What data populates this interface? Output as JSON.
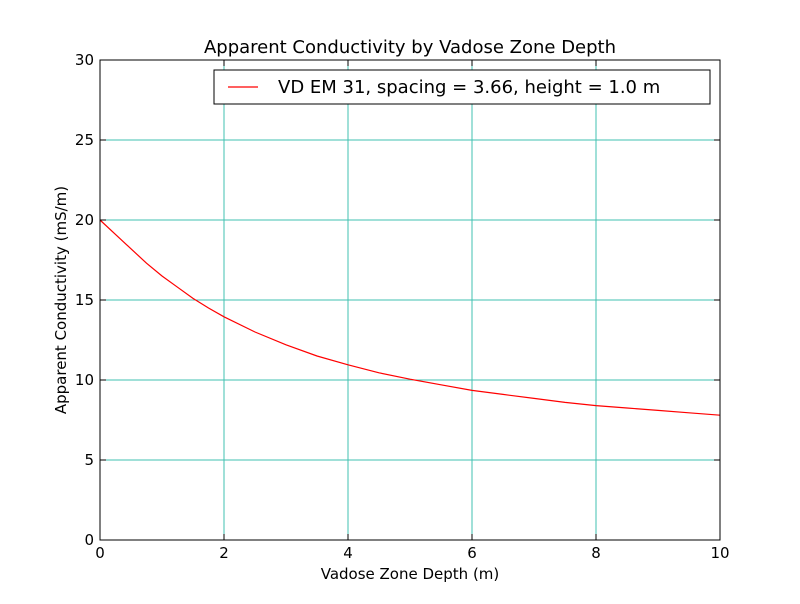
{
  "chart_data": {
    "type": "line",
    "title": "Apparent Conductivity by Vadose Zone Depth",
    "xlabel": "Vadose Zone Depth (m)",
    "ylabel": "Apparent Conductivity (mS/m)",
    "xlim": [
      0,
      10
    ],
    "ylim": [
      0,
      30
    ],
    "xticks": [
      0,
      2,
      4,
      6,
      8,
      10
    ],
    "yticks": [
      0,
      5,
      10,
      15,
      20,
      25,
      30
    ],
    "grid": true,
    "grid_color": "#40c0b0",
    "legend_position": "top-right",
    "series": [
      {
        "name": "VD EM 31, spacing = 3.66, height = 1.0 m",
        "color": "#ff0000",
        "x": [
          0,
          0.25,
          0.5,
          0.75,
          1,
          1.25,
          1.5,
          1.75,
          2,
          2.5,
          3,
          3.5,
          4,
          4.5,
          5,
          5.5,
          6,
          6.5,
          7,
          7.5,
          8,
          8.5,
          9,
          9.5,
          10
        ],
        "y": [
          20.0,
          19.1,
          18.2,
          17.3,
          16.5,
          15.8,
          15.1,
          14.5,
          13.95,
          13.0,
          12.2,
          11.5,
          10.95,
          10.45,
          10.05,
          9.7,
          9.35,
          9.1,
          8.85,
          8.6,
          8.4,
          8.25,
          8.1,
          7.95,
          7.8
        ]
      }
    ]
  }
}
